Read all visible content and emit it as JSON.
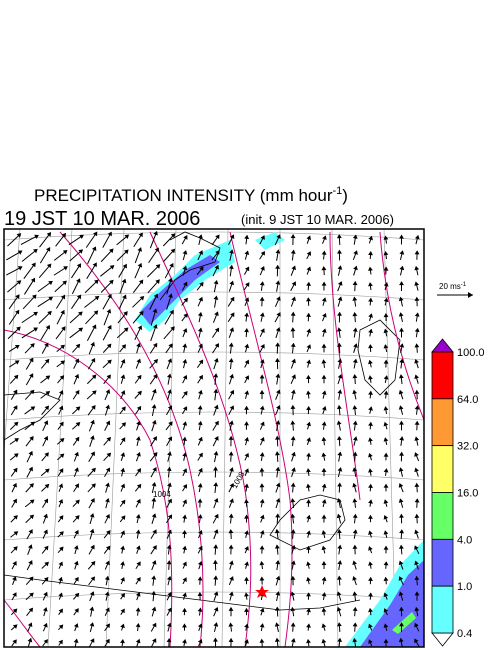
{
  "title": {
    "text": "PRECIPITATION INTENSITY (mm hour",
    "exponent": "-1",
    "close": ")"
  },
  "subtitle": "19 JST 10 MAR. 2006",
  "init": "(init. 9 JST 10 MAR. 2006)",
  "reference_vector": {
    "text": "20 ms",
    "exponent": "-1"
  },
  "contour_labels": [
    "1004",
    "1008"
  ],
  "colorbar_labels": [
    "100.0",
    "64.0",
    "32.0",
    "16.0",
    "4.0",
    "1.0",
    "0.4"
  ]
}
